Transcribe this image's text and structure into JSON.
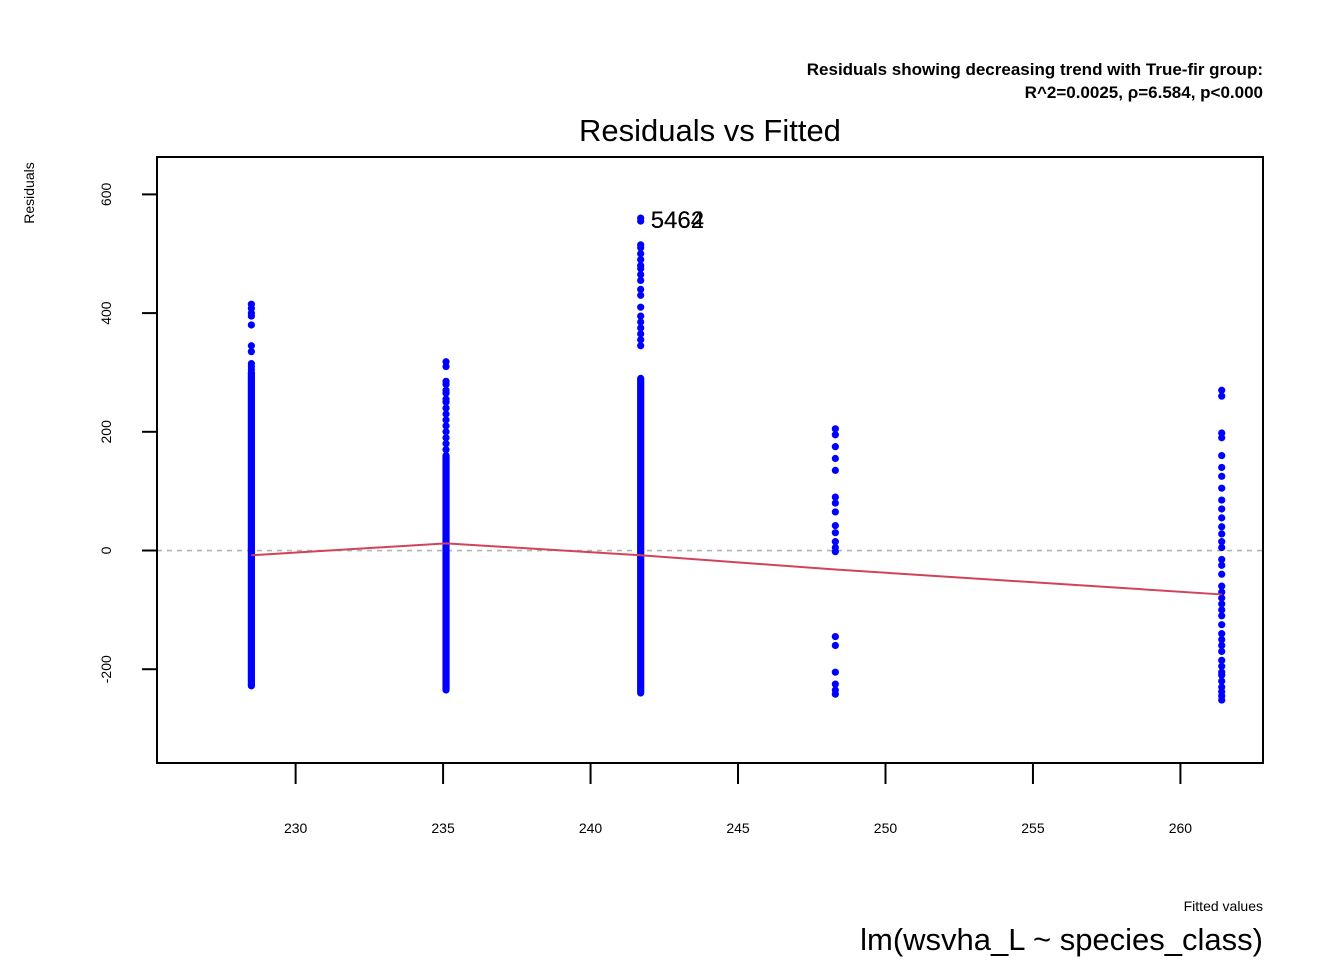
{
  "chart_data": {
    "type": "scatter",
    "title": "Residuals vs Fitted",
    "subtitle_line1": "Residuals showing decreasing trend with True-fir group:",
    "subtitle_line2": "R^2=0.0025, ρ=6.584, p<0.000",
    "xlabel": "Fitted values",
    "ylabel": "Residuals",
    "caption": "lm(wsvha_L ~ species_class)",
    "xlim": [
      225.3,
      262.8
    ],
    "ylim": [
      -358,
      663
    ],
    "x_ticks": [
      230,
      235,
      240,
      245,
      250,
      255,
      260
    ],
    "y_ticks": [
      -200,
      0,
      200,
      400,
      600
    ],
    "reference_line_y": 0,
    "point_color": "#0000ff",
    "smooth_color": "#d1435b",
    "refline_color": "#b3b3b3",
    "groups": [
      {
        "x": 228.5,
        "dense": [
          -228,
          300
        ],
        "points": [
          305,
          310,
          315,
          335,
          345,
          380,
          395,
          400,
          408,
          415
        ]
      },
      {
        "x": 235.1,
        "dense": [
          -235,
          160
        ],
        "points": [
          170,
          180,
          190,
          200,
          210,
          220,
          230,
          240,
          250,
          255,
          265,
          270,
          280,
          285,
          310,
          318
        ]
      },
      {
        "x": 241.7,
        "dense": [
          -240,
          290
        ],
        "points": [
          345,
          355,
          365,
          375,
          385,
          395,
          410,
          430,
          440,
          455,
          465,
          475,
          480,
          490,
          500,
          510,
          515,
          555,
          560
        ]
      },
      {
        "x": 248.3,
        "dense": null,
        "points": [
          -242,
          -235,
          -225,
          -205,
          -160,
          -145,
          -2,
          5,
          15,
          30,
          42,
          65,
          80,
          90,
          135,
          155,
          175,
          195,
          205
        ]
      },
      {
        "x": 261.4,
        "dense": null,
        "points": [
          -252,
          -245,
          -238,
          -230,
          -220,
          -210,
          -205,
          -195,
          -185,
          -170,
          -160,
          -150,
          -140,
          -125,
          -110,
          -100,
          -90,
          -80,
          -70,
          -60,
          -40,
          -25,
          -15,
          5,
          15,
          28,
          40,
          55,
          70,
          85,
          105,
          125,
          140,
          160,
          190,
          198,
          260,
          270
        ]
      }
    ],
    "smooth_line": {
      "x": [
        228.5,
        235.1,
        241.7,
        248.3,
        261.4
      ],
      "y": [
        -8,
        12,
        -8,
        -32,
        -74
      ]
    },
    "labels": [
      {
        "text": "5464",
        "x": 241.7,
        "y": 557
      },
      {
        "text": "5462",
        "x": 241.7,
        "y": 557
      }
    ]
  }
}
